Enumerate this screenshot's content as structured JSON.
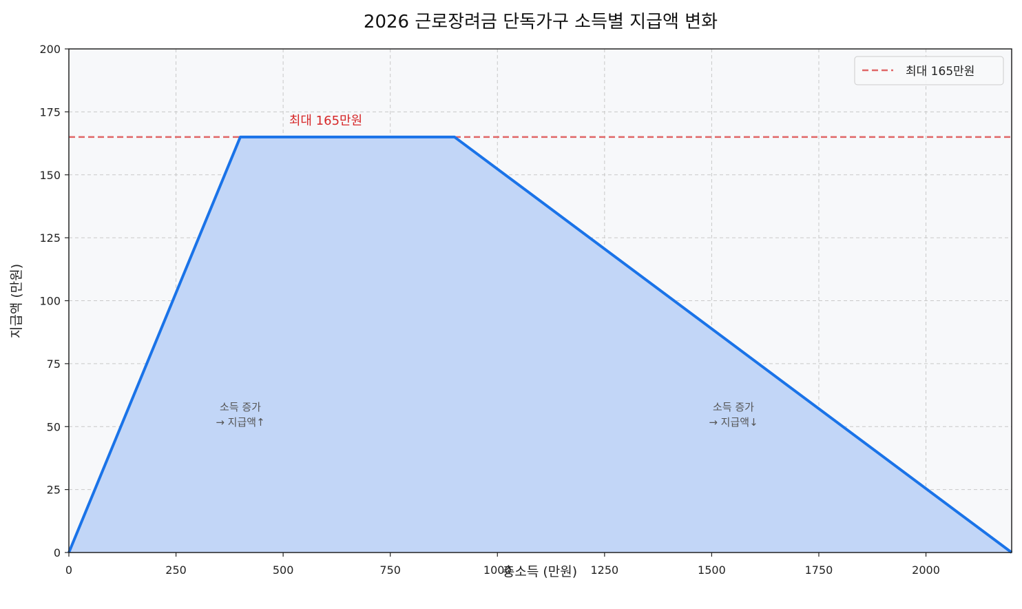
{
  "chart_data": {
    "type": "area",
    "title": "2026 근로장려금 단독가구 소득별 지급액 변화",
    "xlabel": "총소득 (만원)",
    "ylabel": "지급액 (만원)",
    "xlim": [
      0,
      2200
    ],
    "ylim": [
      0,
      200
    ],
    "xticks": [
      0,
      250,
      500,
      750,
      1000,
      1250,
      1500,
      1750,
      2000
    ],
    "yticks": [
      0,
      25,
      50,
      75,
      100,
      125,
      150,
      175,
      200
    ],
    "grid": true,
    "legend_position": "upper right",
    "series": [
      {
        "name": "지급액",
        "color": "#1a73e8",
        "fill_color": "#c2d6f7",
        "x": [
          0,
          400,
          900,
          2200
        ],
        "y": [
          0,
          165,
          165,
          0
        ]
      }
    ],
    "reference_lines": [
      {
        "name": "최대 165만원",
        "y": 165,
        "color": "#e06666",
        "style": "dashed"
      }
    ],
    "annotations": [
      {
        "text": "최대 165만원",
        "x": 600,
        "y": 170,
        "color": "#d62728"
      },
      {
        "text": "소득 증가\n→ 지급액↑",
        "x": 400,
        "y": 55
      },
      {
        "text": "소득 증가\n→ 지급액↓",
        "x": 1550,
        "y": 55
      }
    ]
  },
  "legend": {
    "items": [
      {
        "label": "최대 165만원"
      }
    ]
  },
  "labels": {
    "title": "2026 근로장려금 단독가구 소득별 지급액 변화",
    "xlabel": "총소득 (만원)",
    "ylabel": "지급액 (만원)",
    "max_annotation": "최대 165만원",
    "left_note_line1": "소득 증가",
    "left_note_line2": "→ 지급액↑",
    "right_note_line1": "소득 증가",
    "right_note_line2": "→ 지급액↓"
  },
  "colors": {
    "line": "#1a73e8",
    "fill": "#c2d6f7",
    "max_line": "#e06666",
    "max_text": "#d62728",
    "plot_bg": "#f7f8fa",
    "grid": "#c8c8c8"
  }
}
